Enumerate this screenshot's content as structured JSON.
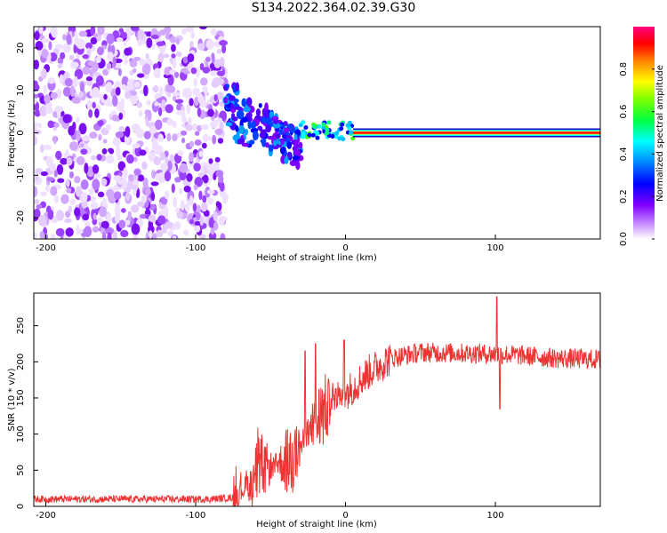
{
  "title": "S134.2022.364.02.39.G30",
  "chart_data": [
    {
      "type": "heatmap",
      "xlabel": "Height of straight line (km)",
      "ylabel": "Frequency (Hz)",
      "xlim": [
        -208,
        170
      ],
      "ylim": [
        -25,
        25
      ],
      "xticks": [
        -200,
        -100,
        0,
        100
      ],
      "yticks": [
        -20,
        -10,
        0,
        10,
        20
      ],
      "colorbar": {
        "label": "Normalized spectral amplitude",
        "range": [
          0.0,
          1.0
        ],
        "ticks": [
          0.0,
          0.2,
          0.4,
          0.6,
          0.8
        ],
        "colormap": [
          "#ffffff",
          "#8000ff",
          "#0000ff",
          "#00ffff",
          "#00ff00",
          "#ffff00",
          "#ff0000",
          "#ff0080"
        ]
      },
      "features": [
        {
          "description": "scattered noise",
          "x_range": [
            -208,
            -80
          ],
          "y_range": [
            -25,
            25
          ],
          "amplitude": 0.1
        },
        {
          "description": "diagonal bursts",
          "x_range": [
            -80,
            -30
          ],
          "y_range": [
            -16,
            11
          ],
          "amplitude": 0.3
        },
        {
          "description": "tone forming",
          "x_range": [
            -30,
            5
          ],
          "y_range": [
            -2,
            4
          ],
          "amplitude": 0.45
        },
        {
          "description": "steady tone near 0 Hz",
          "x_range": [
            5,
            170
          ],
          "y_value": 0,
          "amplitude": 0.95
        }
      ]
    },
    {
      "type": "line",
      "xlabel": "Height of straight line (km)",
      "ylabel": "SNR (10 * v/v)",
      "xlim": [
        -208,
        170
      ],
      "ylim": [
        0,
        295
      ],
      "xticks": [
        -200,
        -100,
        0,
        100
      ],
      "yticks": [
        0,
        50,
        100,
        150,
        200,
        250
      ],
      "color": "#ee3333",
      "envelope": [
        {
          "x": -208,
          "y": 10
        },
        {
          "x": -150,
          "y": 10
        },
        {
          "x": -90,
          "y": 10
        },
        {
          "x": -75,
          "y": 12
        },
        {
          "x": -65,
          "y": 30
        },
        {
          "x": -55,
          "y": 50
        },
        {
          "x": -45,
          "y": 60
        },
        {
          "x": -35,
          "y": 65
        },
        {
          "x": -25,
          "y": 100
        },
        {
          "x": -15,
          "y": 130
        },
        {
          "x": -5,
          "y": 150
        },
        {
          "x": 5,
          "y": 165
        },
        {
          "x": 15,
          "y": 185
        },
        {
          "x": 30,
          "y": 205
        },
        {
          "x": 50,
          "y": 213
        },
        {
          "x": 80,
          "y": 212
        },
        {
          "x": 110,
          "y": 210
        },
        {
          "x": 140,
          "y": 205
        },
        {
          "x": 170,
          "y": 203
        }
      ],
      "peaks": [
        {
          "x": -27,
          "y": 215
        },
        {
          "x": -20,
          "y": 225
        },
        {
          "x": -1,
          "y": 230
        },
        {
          "x": 101,
          "y": 290
        },
        {
          "x": 103,
          "y": 135
        }
      ]
    }
  ]
}
